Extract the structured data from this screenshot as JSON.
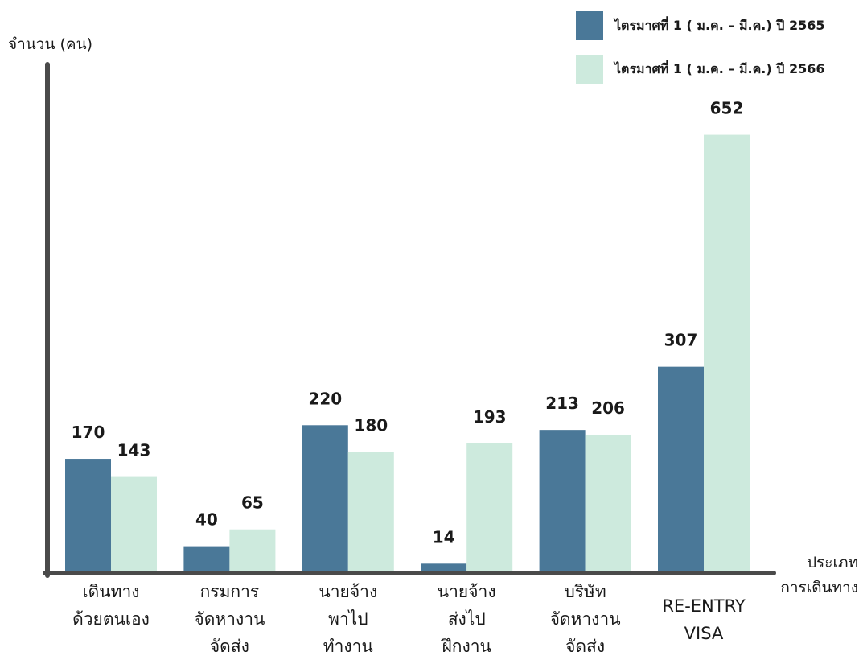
{
  "chart_data": {
    "type": "bar",
    "ylabel": "จำนวน (คน)",
    "xlabel": "ประเภท\nการเดินทาง",
    "categories": [
      "เดินทาง\nด้วยตนเอง",
      "กรมการ\nจัดหางาน\nจัดส่ง",
      "นายจ้าง\nพาไป\nทำงาน",
      "นายจ้าง\nส่งไป\nฝึกงาน",
      "บริษัท\nจัดหางาน\nจัดส่ง",
      "RE-ENTRY\nVISA"
    ],
    "series": [
      {
        "name": "ไตรมาศที่ 1 ( ม.ค. – มี.ค.) ปี 2565",
        "color": "#4a7898",
        "values": [
          170,
          40,
          220,
          14,
          213,
          307
        ]
      },
      {
        "name": "ไตรมาศที่ 1 ( ม.ค. – มี.ค.) ปี 2566",
        "color": "#cdeadd",
        "values": [
          143,
          65,
          180,
          193,
          206,
          652
        ]
      }
    ],
    "legend_position": "top-right",
    "grid": false,
    "axis_color": "#4a4a4a"
  }
}
